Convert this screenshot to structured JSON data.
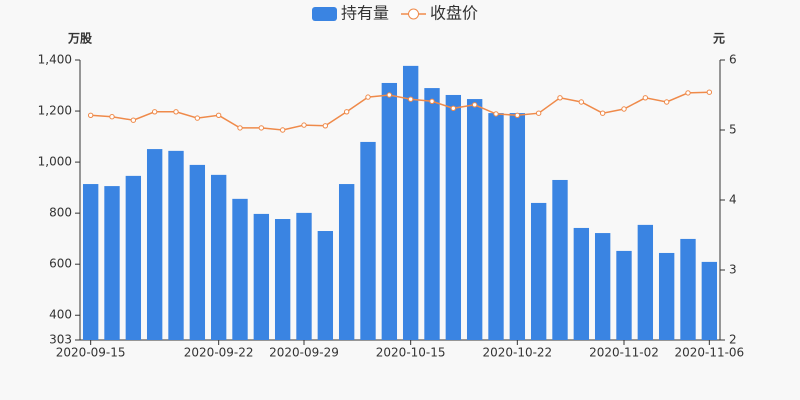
{
  "chart_data": {
    "type": "bar-line",
    "y_label": "万股",
    "y2_label": "元",
    "categories": [
      "2020-09-15",
      null,
      null,
      null,
      null,
      null,
      "2020-09-22",
      null,
      null,
      null,
      "2020-09-29",
      null,
      null,
      null,
      null,
      "2020-10-15",
      null,
      null,
      null,
      null,
      "2020-10-22",
      null,
      null,
      null,
      null,
      "2020-11-02",
      null,
      null,
      null,
      "2020-11-06"
    ],
    "series": [
      {
        "name": "持有量",
        "type": "bar",
        "color": "#3a84e2",
        "values": [
          914,
          906,
          946,
          1051,
          1044,
          989,
          950,
          856,
          797,
          777,
          801,
          730,
          914,
          1079,
          1310,
          1377,
          1290,
          1263,
          1247,
          1192,
          1192,
          840,
          930,
          742,
          722,
          652,
          754,
          644,
          699,
          609
        ]
      },
      {
        "name": "收盘价",
        "type": "line",
        "axis": "y2",
        "color": "#ef8a4a",
        "values": [
          5.21,
          5.19,
          5.14,
          5.26,
          5.26,
          5.17,
          5.21,
          5.03,
          5.03,
          5.0,
          5.07,
          5.06,
          5.26,
          5.47,
          5.5,
          5.44,
          5.41,
          5.31,
          5.36,
          5.23,
          5.21,
          5.24,
          5.46,
          5.4,
          5.24,
          5.3,
          5.46,
          5.4,
          5.53,
          5.54
        ]
      }
    ],
    "ylim": [
      303,
      1400
    ],
    "yticks": [
      303,
      400,
      600,
      800,
      {
        "value": 1000,
        "label": "1,000"
      },
      {
        "value": 1200,
        "label": "1,200"
      },
      {
        "value": 1400,
        "label": "1,400"
      }
    ],
    "y2lim": [
      2,
      6
    ],
    "y2ticks": [
      2,
      3,
      4,
      5,
      6
    ]
  }
}
